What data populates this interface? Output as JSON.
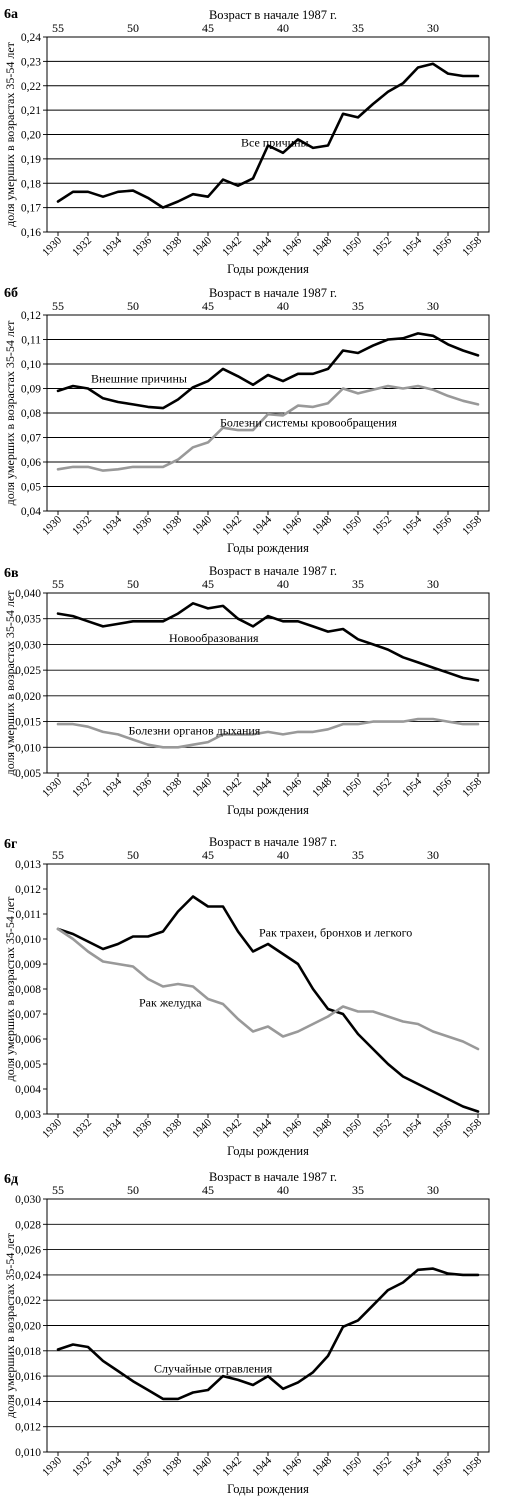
{
  "page": {
    "ylabel": "доля умерших в возрастах 35-54 лет",
    "top_axis_title": "Возраст в начале 1987 г.",
    "xlabel": "Годы рождения"
  },
  "chart_data": [
    {
      "panel": "6а",
      "type": "line",
      "ylim": [
        0.16,
        0.24
      ],
      "yticks": [
        "0,16",
        "0,17",
        "0,18",
        "0,19",
        "0,20",
        "0,21",
        "0,22",
        "0,23",
        "0,24"
      ],
      "xlim": [
        1930,
        1958
      ],
      "xticks": [
        "1930",
        "1932",
        "1934",
        "1936",
        "1938",
        "1940",
        "1942",
        "1944",
        "1946",
        "1948",
        "1950",
        "1952",
        "1954",
        "1956",
        "1958"
      ],
      "top_ticks": [
        {
          "year": 1930,
          "label": "55"
        },
        {
          "year": 1935,
          "label": "50"
        },
        {
          "year": 1940,
          "label": "45"
        },
        {
          "year": 1945,
          "label": "40"
        },
        {
          "year": 1950,
          "label": "35"
        },
        {
          "year": 1955,
          "label": "30"
        }
      ],
      "title": "Возраст в начале 1987 г.",
      "xlabel": "Годы рождения",
      "ylabel": "доля умерших в возрастах 35-54 лет",
      "grid": true,
      "series": [
        {
          "name": "Все причины",
          "color": "#000000",
          "label_at": [
            1942.2,
            0.195
          ],
          "x": [
            1930,
            1931,
            1932,
            1933,
            1934,
            1935,
            1936,
            1937,
            1938,
            1939,
            1940,
            1941,
            1942,
            1943,
            1944,
            1945,
            1946,
            1947,
            1948,
            1949,
            1950,
            1951,
            1952,
            1953,
            1954,
            1955,
            1956,
            1957,
            1958
          ],
          "values": [
            0.1725,
            0.1765,
            0.1765,
            0.1745,
            0.1765,
            0.177,
            0.174,
            0.17,
            0.1725,
            0.1755,
            0.1745,
            0.1815,
            0.179,
            0.182,
            0.1955,
            0.1925,
            0.198,
            0.1945,
            0.1955,
            0.2085,
            0.207,
            0.2125,
            0.2175,
            0.221,
            0.2275,
            0.229,
            0.225,
            0.224,
            0.224
          ]
        }
      ]
    },
    {
      "panel": "6б",
      "type": "line",
      "ylim": [
        0.04,
        0.12
      ],
      "yticks": [
        "0,04",
        "0,05",
        "0,06",
        "0,07",
        "0,08",
        "0,09",
        "0,10",
        "0,11",
        "0,12"
      ],
      "xlim": [
        1930,
        1958
      ],
      "xticks": [
        "1930",
        "1932",
        "1934",
        "1936",
        "1938",
        "1940",
        "1942",
        "1944",
        "1946",
        "1948",
        "1950",
        "1952",
        "1954",
        "1956",
        "1958"
      ],
      "top_ticks": [
        {
          "year": 1930,
          "label": "55"
        },
        {
          "year": 1935,
          "label": "50"
        },
        {
          "year": 1940,
          "label": "45"
        },
        {
          "year": 1945,
          "label": "40"
        },
        {
          "year": 1950,
          "label": "35"
        },
        {
          "year": 1955,
          "label": "30"
        }
      ],
      "title": "Возраст в начале 1987 г.",
      "xlabel": "Годы рождения",
      "ylabel": "доля умерших в возрастах 35-54 лет",
      "grid": true,
      "series": [
        {
          "name": "Внешние причины",
          "color": "#000000",
          "label_at": [
            1932.2,
            0.0925
          ],
          "x": [
            1930,
            1931,
            1932,
            1933,
            1934,
            1935,
            1936,
            1937,
            1938,
            1939,
            1940,
            1941,
            1942,
            1943,
            1944,
            1945,
            1946,
            1947,
            1948,
            1949,
            1950,
            1951,
            1952,
            1953,
            1954,
            1955,
            1956,
            1957,
            1958
          ],
          "values": [
            0.089,
            0.091,
            0.09,
            0.086,
            0.0845,
            0.0835,
            0.0825,
            0.082,
            0.0855,
            0.0905,
            0.093,
            0.098,
            0.095,
            0.0915,
            0.0955,
            0.093,
            0.096,
            0.096,
            0.098,
            0.1055,
            0.1045,
            0.1075,
            0.11,
            0.1105,
            0.1125,
            0.1115,
            0.108,
            0.1055,
            0.1035
          ]
        },
        {
          "name": "Болезни системы кровообращения",
          "color": "#999999",
          "label_at": [
            1940.8,
            0.0745
          ],
          "x": [
            1930,
            1931,
            1932,
            1933,
            1934,
            1935,
            1936,
            1937,
            1938,
            1939,
            1940,
            1941,
            1942,
            1943,
            1944,
            1945,
            1946,
            1947,
            1948,
            1949,
            1950,
            1951,
            1952,
            1953,
            1954,
            1955,
            1956,
            1957,
            1958
          ],
          "values": [
            0.057,
            0.058,
            0.058,
            0.0565,
            0.057,
            0.058,
            0.058,
            0.058,
            0.061,
            0.066,
            0.068,
            0.074,
            0.073,
            0.073,
            0.0795,
            0.079,
            0.083,
            0.0825,
            0.084,
            0.09,
            0.088,
            0.0895,
            0.091,
            0.09,
            0.091,
            0.0895,
            0.087,
            0.085,
            0.0835
          ]
        }
      ]
    },
    {
      "panel": "6в",
      "type": "line",
      "ylim": [
        0.005,
        0.04
      ],
      "yticks": [
        "0,005",
        "0,010",
        "0,015",
        "0,020",
        "0,025",
        "0,030",
        "0,035",
        "0,040"
      ],
      "xlim": [
        1930,
        1958
      ],
      "xticks": [
        "1930",
        "1932",
        "1934",
        "1936",
        "1938",
        "1940",
        "1942",
        "1944",
        "1946",
        "1948",
        "1950",
        "1952",
        "1954",
        "1956",
        "1958"
      ],
      "top_ticks": [
        {
          "year": 1930,
          "label": "55"
        },
        {
          "year": 1935,
          "label": "50"
        },
        {
          "year": 1940,
          "label": "45"
        },
        {
          "year": 1945,
          "label": "40"
        },
        {
          "year": 1950,
          "label": "35"
        },
        {
          "year": 1955,
          "label": "30"
        }
      ],
      "title": "Возраст в начале 1987 г.",
      "xlabel": "Годы рождения",
      "ylabel": "доля умерших в возрастах 35-54 лет",
      "grid": true,
      "series": [
        {
          "name": "Новообразования",
          "color": "#000000",
          "label_at": [
            1937.4,
            0.0305
          ],
          "x": [
            1930,
            1931,
            1932,
            1933,
            1934,
            1935,
            1936,
            1937,
            1938,
            1939,
            1940,
            1941,
            1942,
            1943,
            1944,
            1945,
            1946,
            1947,
            1948,
            1949,
            1950,
            1951,
            1952,
            1953,
            1954,
            1955,
            1956,
            1957,
            1958
          ],
          "values": [
            0.036,
            0.0355,
            0.0345,
            0.0335,
            0.034,
            0.0345,
            0.0345,
            0.0345,
            0.036,
            0.038,
            0.037,
            0.0375,
            0.035,
            0.0335,
            0.0355,
            0.0345,
            0.0345,
            0.0335,
            0.0325,
            0.033,
            0.031,
            0.03,
            0.029,
            0.0275,
            0.0265,
            0.0255,
            0.0245,
            0.0235,
            0.023
          ]
        },
        {
          "name": "Болезни органов дыхания",
          "color": "#999999",
          "label_at": [
            1934.7,
            0.0125
          ],
          "x": [
            1930,
            1931,
            1932,
            1933,
            1934,
            1935,
            1936,
            1937,
            1938,
            1939,
            1940,
            1941,
            1942,
            1943,
            1944,
            1945,
            1946,
            1947,
            1948,
            1949,
            1950,
            1951,
            1952,
            1953,
            1954,
            1955,
            1956,
            1957,
            1958
          ],
          "values": [
            0.0145,
            0.0145,
            0.014,
            0.013,
            0.0125,
            0.0115,
            0.0105,
            0.01,
            0.01,
            0.0105,
            0.011,
            0.0125,
            0.0125,
            0.0125,
            0.013,
            0.0125,
            0.013,
            0.013,
            0.0135,
            0.0145,
            0.0145,
            0.015,
            0.015,
            0.015,
            0.0155,
            0.0155,
            0.015,
            0.0145,
            0.0145
          ]
        }
      ]
    },
    {
      "panel": "6г",
      "type": "line",
      "ylim": [
        0.003,
        0.013
      ],
      "yticks": [
        "0,003",
        "0,004",
        "0,005",
        "0,006",
        "0,007",
        "0,008",
        "0,009",
        "0,010",
        "0,011",
        "0,012",
        "0,013"
      ],
      "xlim": [
        1930,
        1958
      ],
      "xticks": [
        "1930",
        "1932",
        "1934",
        "1936",
        "1938",
        "1940",
        "1942",
        "1944",
        "1946",
        "1948",
        "1950",
        "1952",
        "1954",
        "1956",
        "1958"
      ],
      "top_ticks": [
        {
          "year": 1930,
          "label": "55"
        },
        {
          "year": 1935,
          "label": "50"
        },
        {
          "year": 1940,
          "label": "45"
        },
        {
          "year": 1945,
          "label": "40"
        },
        {
          "year": 1950,
          "label": "35"
        },
        {
          "year": 1955,
          "label": "30"
        }
      ],
      "title": "Возраст в начале 1987 г.",
      "xlabel": "Годы рождения",
      "ylabel": "доля умерших в возрастах 35-54 лет",
      "grid": false,
      "series": [
        {
          "name": "Рак трахеи, бронхов и легкого",
          "color": "#000000",
          "label_at": [
            1943.4,
            0.0101
          ],
          "x": [
            1930,
            1931,
            1932,
            1933,
            1934,
            1935,
            1936,
            1937,
            1938,
            1939,
            1940,
            1941,
            1942,
            1943,
            1944,
            1945,
            1946,
            1947,
            1948,
            1949,
            1950,
            1951,
            1952,
            1953,
            1954,
            1955,
            1956,
            1957,
            1958
          ],
          "values": [
            0.0104,
            0.0102,
            0.0099,
            0.0096,
            0.0098,
            0.0101,
            0.0101,
            0.0103,
            0.0111,
            0.0117,
            0.0113,
            0.0113,
            0.0103,
            0.0095,
            0.0098,
            0.0094,
            0.009,
            0.008,
            0.0072,
            0.007,
            0.0062,
            0.0056,
            0.005,
            0.0045,
            0.0042,
            0.0039,
            0.0036,
            0.0033,
            0.0031
          ]
        },
        {
          "name": "Рак желудка",
          "color": "#999999",
          "label_at": [
            1935.4,
            0.0073
          ],
          "x": [
            1930,
            1931,
            1932,
            1933,
            1934,
            1935,
            1936,
            1937,
            1938,
            1939,
            1940,
            1941,
            1942,
            1943,
            1944,
            1945,
            1946,
            1947,
            1948,
            1949,
            1950,
            1951,
            1952,
            1953,
            1954,
            1955,
            1956,
            1957,
            1958
          ],
          "values": [
            0.0104,
            0.01,
            0.0095,
            0.0091,
            0.009,
            0.0089,
            0.0084,
            0.0081,
            0.0082,
            0.0081,
            0.0076,
            0.0074,
            0.0068,
            0.0063,
            0.0065,
            0.0061,
            0.0063,
            0.0066,
            0.0069,
            0.0073,
            0.0071,
            0.0071,
            0.0069,
            0.0067,
            0.0066,
            0.0063,
            0.0061,
            0.0059,
            0.0056
          ]
        }
      ]
    },
    {
      "panel": "6д",
      "type": "line",
      "ylim": [
        0.01,
        0.03
      ],
      "yticks": [
        "0,010",
        "0,012",
        "0,014",
        "0,016",
        "0,018",
        "0,020",
        "0,022",
        "0,024",
        "0,026",
        "0,028",
        "0,030"
      ],
      "xlim": [
        1930,
        1958
      ],
      "xticks": [
        "1930",
        "1932",
        "1934",
        "1936",
        "1938",
        "1940",
        "1942",
        "1944",
        "1946",
        "1948",
        "1950",
        "1952",
        "1954",
        "1956",
        "1958"
      ],
      "top_ticks": [
        {
          "year": 1930,
          "label": "55"
        },
        {
          "year": 1935,
          "label": "50"
        },
        {
          "year": 1940,
          "label": "45"
        },
        {
          "year": 1945,
          "label": "40"
        },
        {
          "year": 1950,
          "label": "35"
        },
        {
          "year": 1955,
          "label": "30"
        }
      ],
      "title": "Возраст в начале 1987 г.",
      "xlabel": "Годы рождения",
      "ylabel": "доля умерших в возрастах 35-54 лет",
      "grid": true,
      "series": [
        {
          "name": "Случайные отравления",
          "color": "#000000",
          "label_at": [
            1936.4,
            0.0163
          ],
          "x": [
            1930,
            1931,
            1932,
            1933,
            1934,
            1935,
            1936,
            1937,
            1938,
            1939,
            1940,
            1941,
            1942,
            1943,
            1944,
            1945,
            1946,
            1947,
            1948,
            1949,
            1950,
            1951,
            1952,
            1953,
            1954,
            1955,
            1956,
            1957,
            1958
          ],
          "values": [
            0.0181,
            0.0185,
            0.0183,
            0.0172,
            0.0164,
            0.0156,
            0.0149,
            0.0142,
            0.0142,
            0.0147,
            0.0149,
            0.016,
            0.0157,
            0.0153,
            0.016,
            0.015,
            0.0155,
            0.0163,
            0.0176,
            0.0199,
            0.0204,
            0.0216,
            0.0228,
            0.0234,
            0.0244,
            0.0245,
            0.0241,
            0.024,
            0.024
          ]
        }
      ]
    }
  ]
}
